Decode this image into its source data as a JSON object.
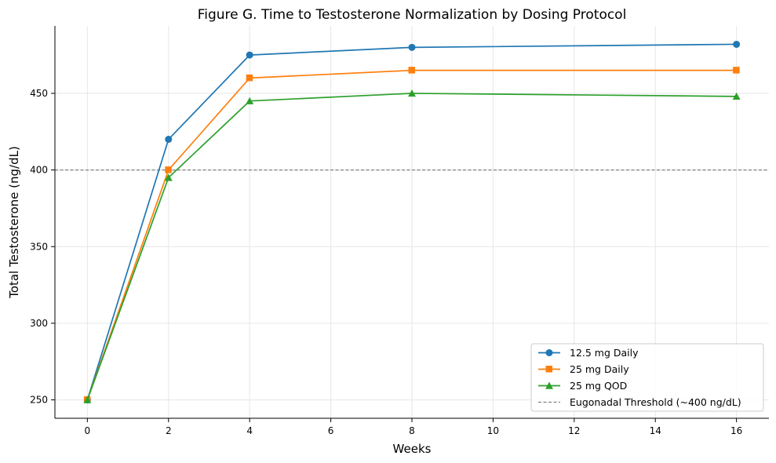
{
  "chart_data": {
    "type": "line",
    "title": "Figure G. Time to Testosterone Normalization by Dosing Protocol",
    "xlabel": "Weeks",
    "ylabel": "Total Testosterone (ng/dL)",
    "xlim": [
      -0.8,
      16.8
    ],
    "ylim": [
      238,
      494
    ],
    "xticks": [
      0,
      2,
      4,
      6,
      8,
      10,
      12,
      14,
      16
    ],
    "yticks": [
      250,
      300,
      350,
      400,
      450
    ],
    "grid": true,
    "legend_position": "lower-right",
    "x": [
      0,
      2,
      4,
      8,
      16
    ],
    "series": [
      {
        "name": "12.5 mg Daily",
        "values": [
          250,
          420,
          475,
          480,
          482
        ],
        "color": "#1f77b4",
        "marker": "circle"
      },
      {
        "name": "25 mg Daily",
        "values": [
          250,
          400,
          460,
          465,
          465
        ],
        "color": "#ff7f0e",
        "marker": "square"
      },
      {
        "name": "25 mg QOD",
        "values": [
          250,
          395,
          445,
          450,
          448
        ],
        "color": "#2ca02c",
        "marker": "triangle"
      }
    ],
    "reference_line": {
      "name": "Eugonadal Threshold (~400 ng/dL)",
      "y": 400,
      "color": "#808080",
      "style": "dashed"
    }
  }
}
